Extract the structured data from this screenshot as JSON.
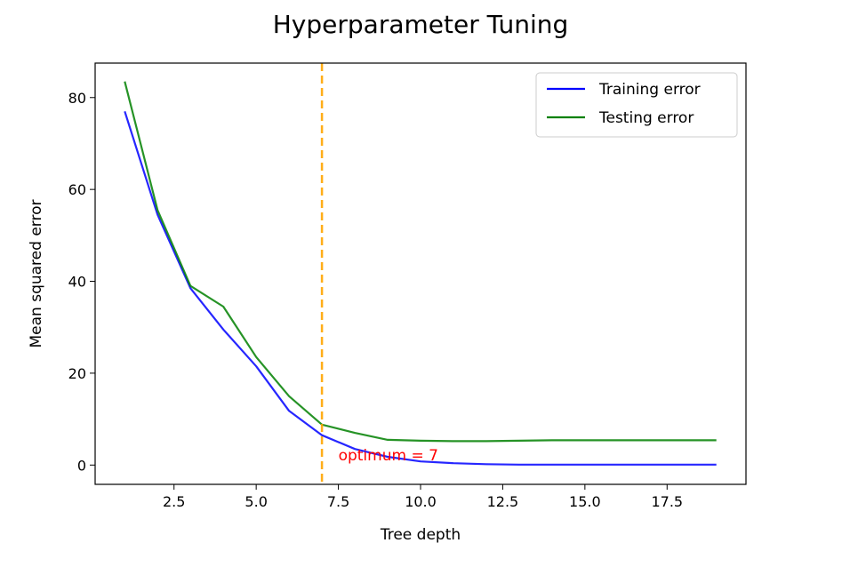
{
  "chart_data": {
    "type": "line",
    "title": "Hyperparameter Tuning",
    "xlabel": "Tree depth",
    "ylabel": "Mean squared error",
    "xlim": [
      0.1,
      19.9
    ],
    "ylim": [
      -4.2,
      87.5
    ],
    "xticks": [
      2.5,
      5.0,
      7.5,
      10.0,
      12.5,
      15.0,
      17.5
    ],
    "xtick_labels": [
      "2.5",
      "5.0",
      "7.5",
      "10.0",
      "12.5",
      "15.0",
      "17.5"
    ],
    "yticks": [
      0,
      20,
      40,
      60,
      80
    ],
    "ytick_labels": [
      "0",
      "20",
      "40",
      "60",
      "80"
    ],
    "grid": false,
    "legend_position": "top-right",
    "series": [
      {
        "name": "Training error",
        "color": "#0000ff",
        "x": [
          1,
          2,
          3,
          4,
          5,
          6,
          7,
          8,
          9,
          10,
          11,
          12,
          13,
          14,
          15,
          16,
          17,
          18,
          19
        ],
        "y": [
          77.0,
          54.5,
          38.5,
          29.5,
          21.5,
          11.8,
          6.5,
          3.5,
          1.8,
          0.8,
          0.4,
          0.2,
          0.1,
          0.1,
          0.1,
          0.1,
          0.1,
          0.1,
          0.1
        ]
      },
      {
        "name": "Testing error",
        "color": "#008000",
        "x": [
          1,
          2,
          3,
          4,
          5,
          6,
          7,
          8,
          9,
          10,
          11,
          12,
          13,
          14,
          15,
          16,
          17,
          18,
          19
        ],
        "y": [
          83.5,
          55.5,
          39.0,
          34.5,
          23.5,
          15.0,
          8.8,
          7.0,
          5.5,
          5.3,
          5.2,
          5.2,
          5.3,
          5.4,
          5.4,
          5.4,
          5.4,
          5.4,
          5.4
        ]
      }
    ],
    "vline": {
      "x": 7,
      "color": "#ffa500",
      "style": "dashed"
    },
    "annotation": {
      "text": "optimum = 7",
      "x": 7.5,
      "y": 2.0,
      "color": "#ff0000"
    }
  }
}
